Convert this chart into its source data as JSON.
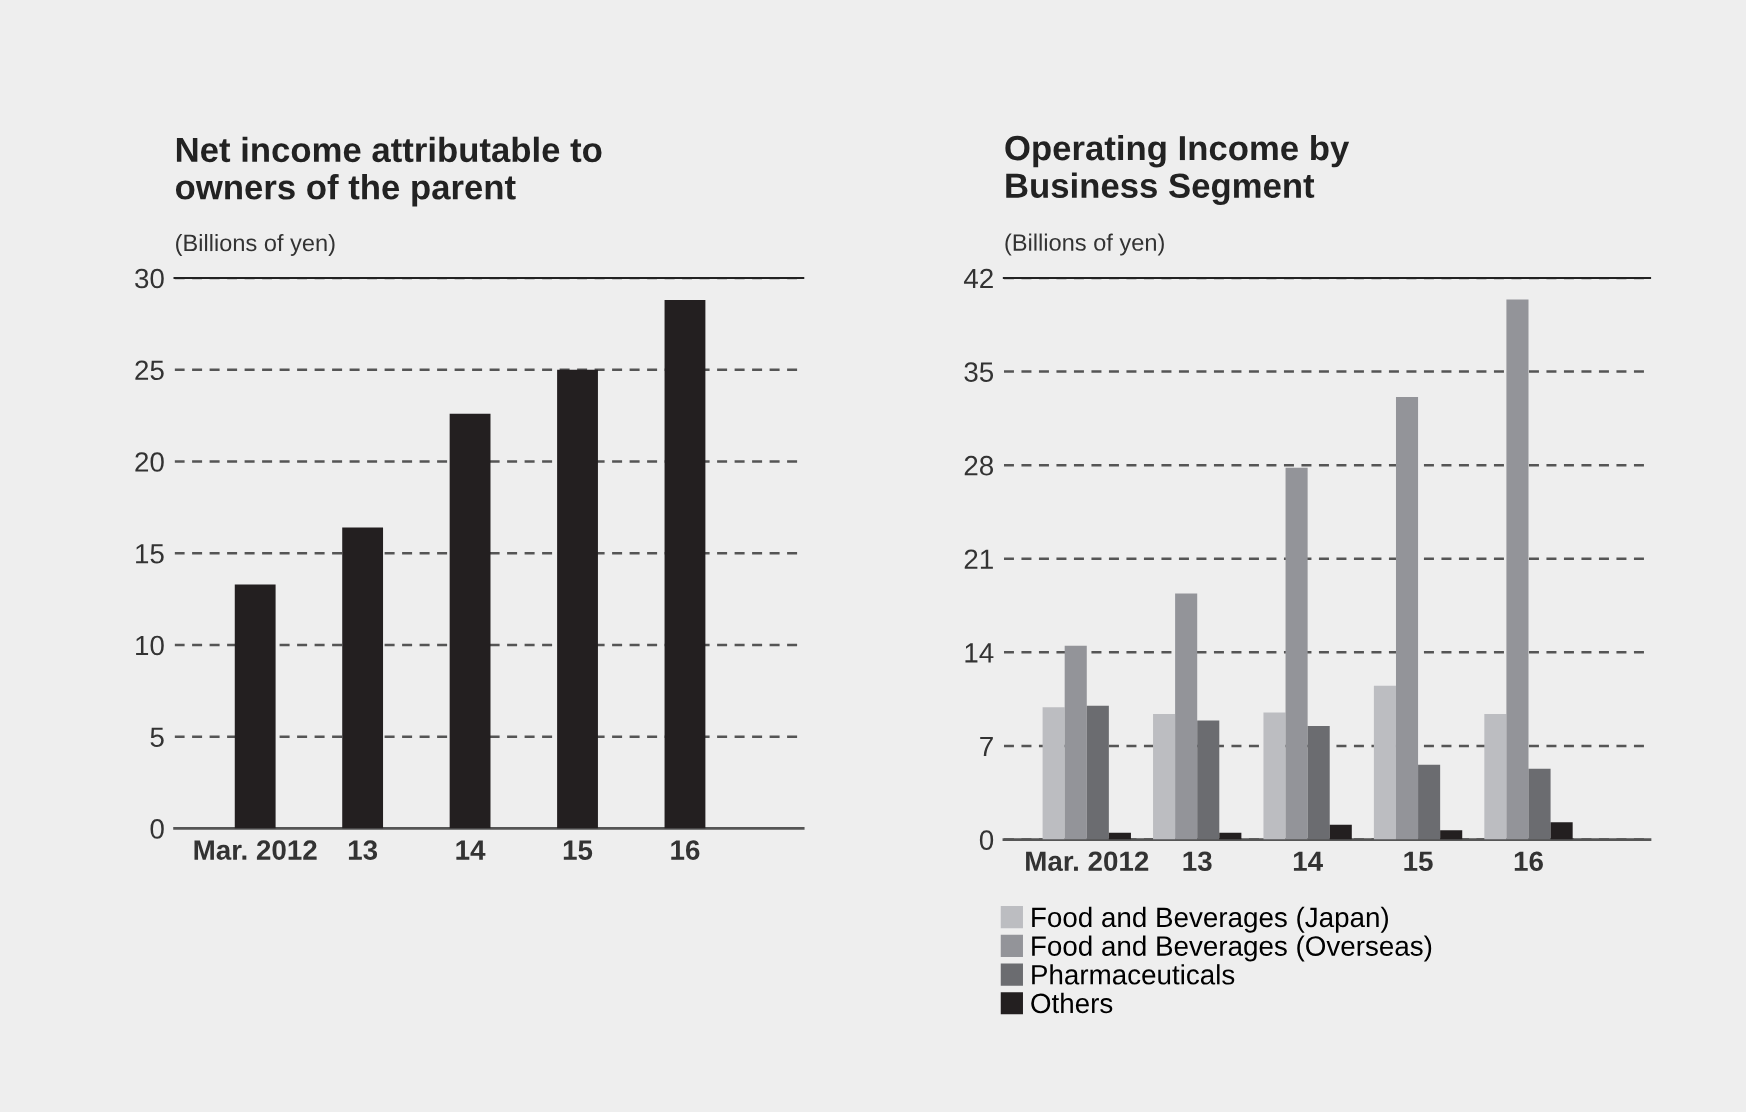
{
  "chart_data": [
    {
      "type": "bar",
      "title": "Net income attributable to\nowners of the parent",
      "subtitle": "(Billions of yen)",
      "categories": [
        "Mar. 2012",
        "13",
        "14",
        "15",
        "16"
      ],
      "series": [
        {
          "color": "#231f20",
          "values": [
            13.3,
            16.4,
            22.6,
            25.0,
            28.8
          ]
        }
      ],
      "ylim": [
        0,
        30
      ],
      "yticks": [
        0,
        5,
        10,
        15,
        20,
        25,
        30
      ],
      "grid": "y",
      "line_style": "dashed"
    },
    {
      "type": "bar",
      "title": "Operating Income by\nBusiness Segment",
      "subtitle": "(Billions of yen)",
      "categories": [
        "Mar. 2012",
        "13",
        "14",
        "15",
        "16"
      ],
      "series": [
        {
          "name": "Food and Beverages (Japan)",
          "color": "#bcbdc1",
          "values": [
            9.9,
            9.4,
            9.5,
            11.5,
            9.4
          ]
        },
        {
          "name": "Food and Beverages (Overseas)",
          "color": "#939499",
          "values": [
            14.5,
            18.4,
            27.8,
            33.1,
            40.4
          ]
        },
        {
          "name": "Pharmaceuticals",
          "color": "#6b6c70",
          "values": [
            10.0,
            8.9,
            8.5,
            5.6,
            5.3
          ]
        },
        {
          "name": "Others",
          "color": "#231f20",
          "values": [
            0.5,
            0.5,
            1.1,
            0.7,
            1.3
          ]
        }
      ],
      "ylim": [
        0,
        42
      ],
      "yticks": [
        0,
        7,
        14,
        21,
        28,
        35,
        42
      ],
      "grid": "y",
      "line_style": "dashed",
      "legend": "bottom left"
    }
  ]
}
